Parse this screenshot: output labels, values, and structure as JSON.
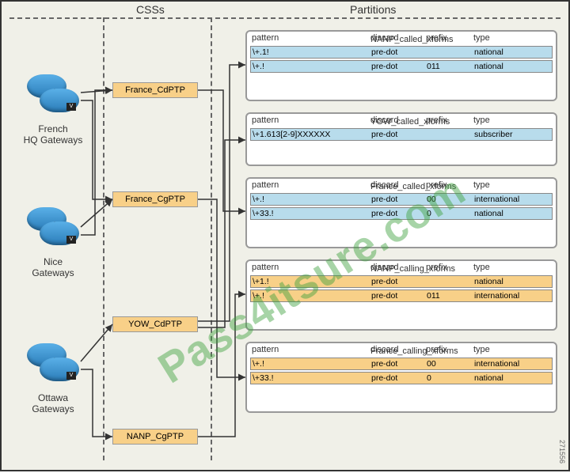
{
  "labels": {
    "csss": "CSSs",
    "partitions": "Partitions"
  },
  "gateways": [
    {
      "name": "French\nHQ Gateways"
    },
    {
      "name": "Nice\nGateways"
    },
    {
      "name": "Ottawa\nGateways"
    }
  ],
  "css_boxes": [
    {
      "label": "France_CdPTP",
      "bg": "#f8d088"
    },
    {
      "label": "France_CgPTP",
      "bg": "#f8d088"
    },
    {
      "label": "YOW_CdPTP",
      "bg": "#f8d088"
    },
    {
      "label": "NANP_CgPTP",
      "bg": "#f8d088"
    }
  ],
  "partitions": [
    {
      "title": "NANP_called_xforms",
      "headers": [
        "pattern",
        "discard",
        "prefix",
        "type"
      ],
      "row_bg": "#b8dcec",
      "rows": [
        [
          "\\+.1!",
          "pre-dot",
          "",
          "national"
        ],
        [
          "\\+.!",
          "pre-dot",
          "011",
          "national"
        ]
      ]
    },
    {
      "title": "YOW_called_xforms",
      "headers": [
        "pattern",
        "discard",
        "prefix",
        "type"
      ],
      "row_bg": "#b8dcec",
      "rows": [
        [
          "\\+1.613[2-9]XXXXXX",
          "pre-dot",
          "",
          "subscriber"
        ]
      ]
    },
    {
      "title": "France_called_xforms",
      "headers": [
        "pattern",
        "discard",
        "prefix",
        "type"
      ],
      "row_bg": "#b8dcec",
      "rows": [
        [
          "\\+.!",
          "pre-dot",
          "00",
          "international"
        ],
        [
          "\\+33.!",
          "pre-dot",
          "0",
          "national"
        ]
      ]
    },
    {
      "title": "NANP_calling_xforms",
      "headers": [
        "pattern",
        "discard",
        "prefix",
        "type"
      ],
      "row_bg": "#f8d088",
      "rows": [
        [
          "\\+1.!",
          "pre-dot",
          "",
          "national"
        ],
        [
          "\\+.!",
          "pre-dot",
          "011",
          "international"
        ]
      ]
    },
    {
      "title": "France_calling_xforms",
      "headers": [
        "pattern",
        "discard",
        "prefix",
        "type"
      ],
      "row_bg": "#f8d088",
      "rows": [
        [
          "\\+.!",
          "pre-dot",
          "00",
          "international"
        ],
        [
          "\\+33.!",
          "pre-dot",
          "0",
          "national"
        ]
      ]
    }
  ],
  "watermark": "Pass4itsure.com",
  "sidenum": "271556",
  "colors": {
    "border": "#333333",
    "dash": "#666666",
    "blue_row": "#b8dcec",
    "orange_row": "#f8d088",
    "bg": "#f0f0e8"
  }
}
